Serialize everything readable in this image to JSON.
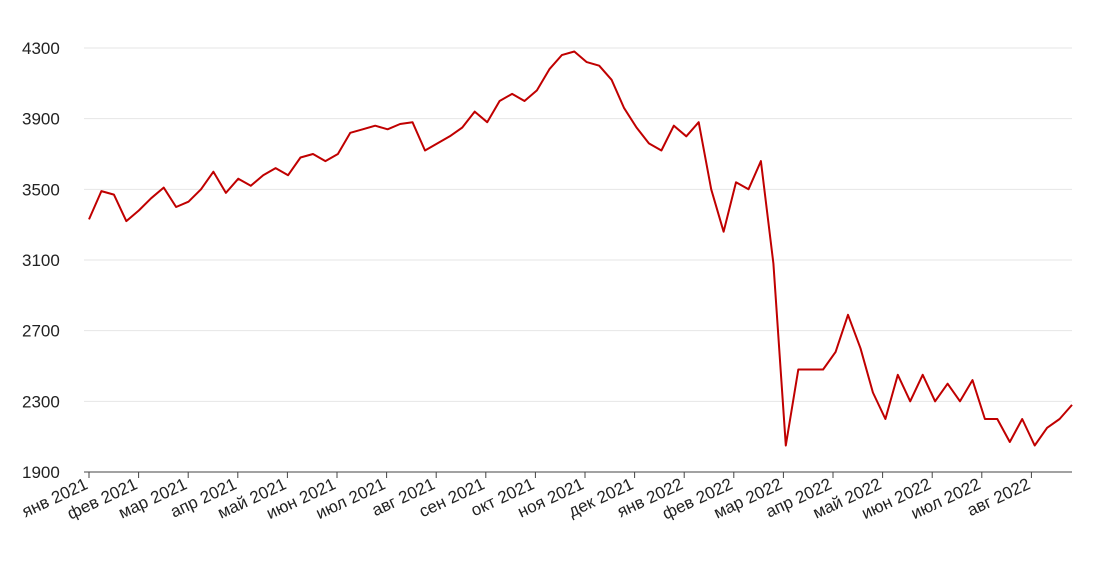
{
  "chart_data": {
    "type": "line",
    "xticks": [
      "янв 2021",
      "фев 2021",
      "мар 2021",
      "апр 2021",
      "май 2021",
      "июн 2021",
      "июл 2021",
      "авг 2021",
      "сен 2021",
      "окт 2021",
      "ноя 2021",
      "дек 2021",
      "янв 2022",
      "фев 2022",
      "мар 2022",
      "апр 2022",
      "май 2022",
      "июн 2022",
      "июл 2022",
      "авг 2022"
    ],
    "series": [
      {
        "color": "#c00000",
        "values": [
          3330,
          3490,
          3470,
          3320,
          3380,
          3450,
          3510,
          3400,
          3430,
          3500,
          3600,
          3480,
          3560,
          3520,
          3580,
          3620,
          3580,
          3680,
          3700,
          3660,
          3700,
          3820,
          3840,
          3860,
          3840,
          3870,
          3880,
          3720,
          3760,
          3800,
          3850,
          3940,
          3880,
          4000,
          4040,
          4000,
          4060,
          4180,
          4260,
          4280,
          4220,
          4200,
          4120,
          3960,
          3850,
          3760,
          3720,
          3860,
          3800,
          3880,
          3500,
          3260,
          3540,
          3500,
          3660,
          3080,
          2050,
          2480,
          2480,
          2480,
          2580,
          2790,
          2600,
          2350,
          2200,
          2450,
          2300,
          2450,
          2300,
          2400,
          2300,
          2420,
          2200,
          2200,
          2070,
          2200,
          2050,
          2150,
          2200,
          2280
        ]
      }
    ],
    "ylim": [
      1900,
      4300
    ],
    "yticks": [
      1900,
      2300,
      2700,
      3100,
      3500,
      3900,
      4300
    ],
    "grid": true
  }
}
